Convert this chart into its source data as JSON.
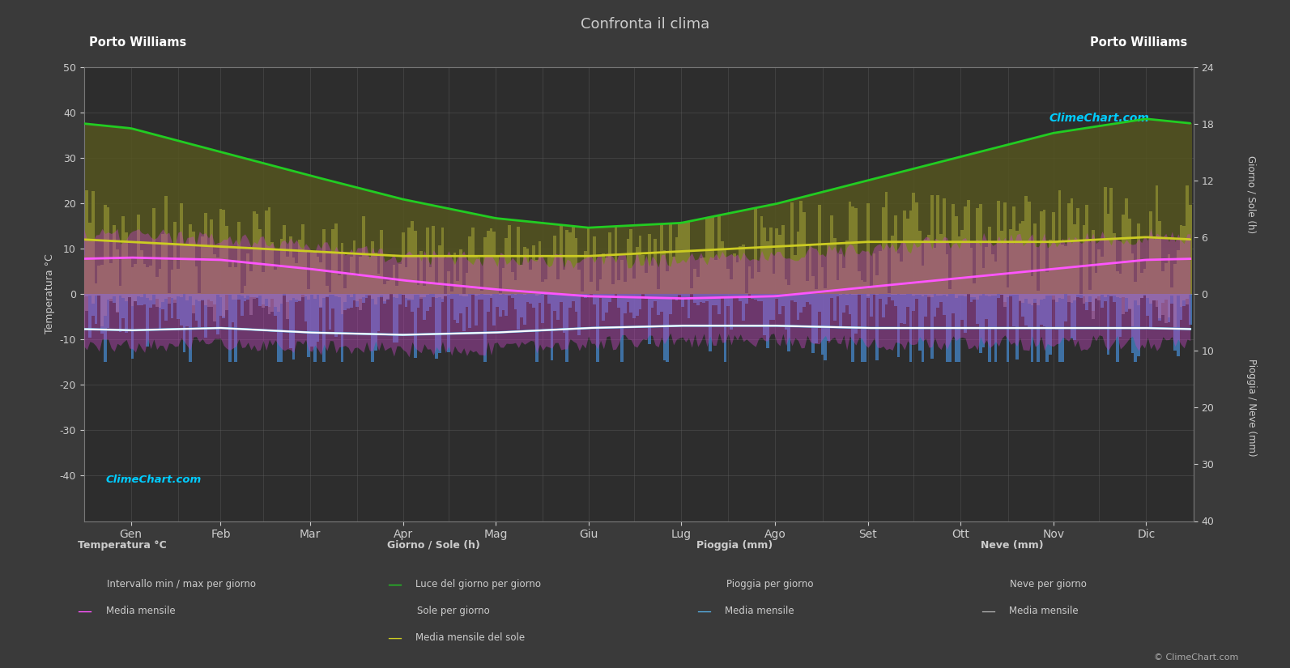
{
  "title": "Confronta il clima",
  "location_left": "Porto Williams",
  "location_right": "Porto Williams",
  "bg_color": "#3a3a3a",
  "plot_bg_color": "#2d2d2d",
  "text_color": "#cccccc",
  "months": [
    "Gen",
    "Feb",
    "Mar",
    "Apr",
    "Mag",
    "Giu",
    "Lug",
    "Ago",
    "Set",
    "Ott",
    "Nov",
    "Dic"
  ],
  "temp_ylabel": "Temperatura °C",
  "rain_ylabel": "Pioggia / Neve (mm)",
  "sun_ylabel": "Giorno / Sole (h)",
  "temp_mean": [
    8.0,
    7.5,
    5.5,
    3.0,
    1.0,
    -0.5,
    -1.0,
    -0.5,
    1.5,
    3.5,
    5.5,
    7.5
  ],
  "temp_min_mean": [
    -8.0,
    -7.5,
    -8.5,
    -9.0,
    -8.5,
    -7.5,
    -7.0,
    -7.0,
    -7.5,
    -7.5,
    -7.5,
    -7.5
  ],
  "temp_max_mean": [
    9.5,
    9.0,
    7.0,
    5.0,
    4.5,
    4.0,
    4.5,
    5.5,
    6.5,
    8.5,
    8.5,
    9.5
  ],
  "daylight_hours": [
    17.5,
    15.0,
    12.5,
    10.0,
    8.0,
    7.0,
    7.5,
    9.5,
    12.0,
    14.5,
    17.0,
    18.5
  ],
  "sunshine_hours_mean": [
    5.5,
    5.0,
    4.5,
    4.0,
    4.0,
    4.0,
    4.5,
    5.0,
    5.5,
    5.5,
    5.5,
    6.0
  ],
  "rain_mean_mm": [
    5.0,
    4.5,
    5.5,
    5.0,
    4.5,
    4.0,
    4.0,
    4.5,
    6.0,
    6.0,
    6.5,
    5.5
  ],
  "snow_mean_mm": [
    2.0,
    2.0,
    1.5,
    0.5,
    0.1,
    0.0,
    0.0,
    0.0,
    0.1,
    0.3,
    0.8,
    1.5
  ],
  "green_line_color": "#22cc22",
  "yellow_line_color": "#cccc22",
  "magenta_line_color": "#ff55ff",
  "white_line_color": "#ffffff",
  "blue_line_color": "#55aadd",
  "rain_color": "#4488cc",
  "snow_color": "#999999",
  "daylight_bar_color": "#555520",
  "sunshine_bar_color": "#888830",
  "magenta_band_color": "#bb44bb",
  "logo_text": "ClimeChart.com",
  "copyright_text": "© ClimeChart.com",
  "legend_temp_title": "Temperatura °C",
  "legend_sun_title": "Giorno / Sole (h)",
  "legend_rain_title": "Pioggia (mm)",
  "legend_snow_title": "Neve (mm)"
}
